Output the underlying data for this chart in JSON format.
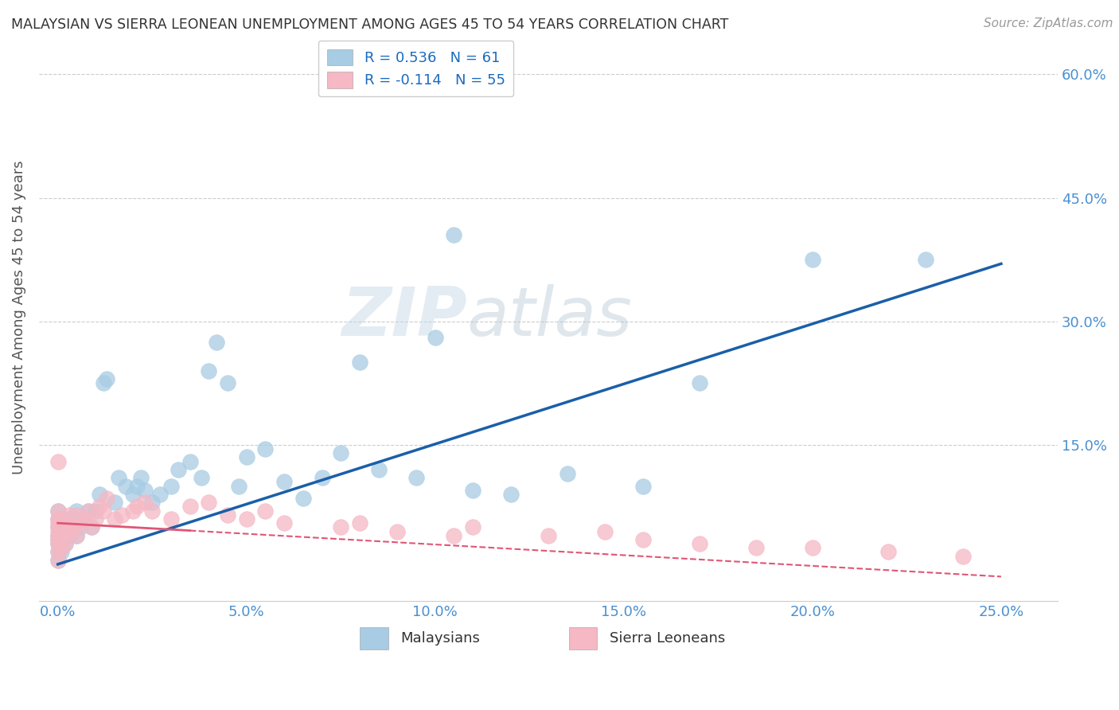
{
  "title": "MALAYSIAN VS SIERRA LEONEAN UNEMPLOYMENT AMONG AGES 45 TO 54 YEARS CORRELATION CHART",
  "source": "Source: ZipAtlas.com",
  "xlabel_ticks": [
    "0.0%",
    "5.0%",
    "10.0%",
    "15.0%",
    "20.0%",
    "25.0%"
  ],
  "xlabel_vals": [
    0.0,
    5.0,
    10.0,
    15.0,
    20.0,
    25.0
  ],
  "ylabel_ticks": [
    "15.0%",
    "30.0%",
    "45.0%",
    "60.0%"
  ],
  "ylabel_vals": [
    15,
    30,
    45,
    60
  ],
  "ylabel_label": "Unemployment Among Ages 45 to 54 years",
  "xlim": [
    -0.5,
    26.5
  ],
  "ylim": [
    -4.0,
    65.0
  ],
  "malaysian_R": 0.536,
  "malaysian_N": 61,
  "sierraleone_R": -0.114,
  "sierraleone_N": 55,
  "blue_color": "#a8cce4",
  "pink_color": "#f5b8c4",
  "blue_line_color": "#1a5fa8",
  "pink_line_color": "#e05575",
  "watermark_zip": "ZIP",
  "watermark_atlas": "atlas",
  "legend_R_color": "#1a6bbf",
  "title_color": "#333333",
  "tick_color": "#4a90d0",
  "malaysian_x": [
    0.0,
    0.0,
    0.0,
    0.0,
    0.0,
    0.0,
    0.0,
    0.0,
    0.1,
    0.1,
    0.1,
    0.2,
    0.2,
    0.3,
    0.3,
    0.4,
    0.5,
    0.5,
    0.6,
    0.7,
    0.8,
    0.9,
    1.0,
    1.1,
    1.2,
    1.3,
    1.5,
    1.6,
    1.8,
    2.0,
    2.1,
    2.2,
    2.3,
    2.5,
    2.7,
    3.0,
    3.2,
    3.5,
    3.8,
    4.0,
    4.2,
    4.5,
    4.8,
    5.0,
    5.5,
    6.0,
    6.5,
    7.0,
    7.5,
    8.0,
    8.5,
    9.5,
    10.0,
    10.5,
    11.0,
    12.0,
    13.5,
    15.5,
    17.0,
    20.0,
    23.0
  ],
  "malaysian_y": [
    1.0,
    2.0,
    3.0,
    3.5,
    4.0,
    5.0,
    6.0,
    7.0,
    2.0,
    4.0,
    6.0,
    3.0,
    5.0,
    4.0,
    6.0,
    5.0,
    4.0,
    7.0,
    5.0,
    6.0,
    7.0,
    5.0,
    7.0,
    9.0,
    22.5,
    23.0,
    8.0,
    11.0,
    10.0,
    9.0,
    10.0,
    11.0,
    9.5,
    8.0,
    9.0,
    10.0,
    12.0,
    13.0,
    11.0,
    24.0,
    27.5,
    22.5,
    10.0,
    13.5,
    14.5,
    10.5,
    8.5,
    11.0,
    14.0,
    25.0,
    12.0,
    11.0,
    28.0,
    40.5,
    9.5,
    9.0,
    11.5,
    10.0,
    22.5,
    37.5,
    37.5
  ],
  "sierraleone_x": [
    0.0,
    0.0,
    0.0,
    0.0,
    0.0,
    0.0,
    0.0,
    0.0,
    0.0,
    0.0,
    0.0,
    0.1,
    0.1,
    0.1,
    0.2,
    0.2,
    0.3,
    0.3,
    0.4,
    0.5,
    0.5,
    0.6,
    0.7,
    0.8,
    0.9,
    1.0,
    1.1,
    1.2,
    1.3,
    1.5,
    1.7,
    2.0,
    2.1,
    2.3,
    2.5,
    3.0,
    3.5,
    4.0,
    4.5,
    5.0,
    5.5,
    6.0,
    7.5,
    8.0,
    9.0,
    10.5,
    11.0,
    13.0,
    14.5,
    15.5,
    17.0,
    18.5,
    20.0,
    22.0,
    24.0
  ],
  "sierraleone_y": [
    1.0,
    2.0,
    3.0,
    3.5,
    4.0,
    4.5,
    5.0,
    5.5,
    6.0,
    7.0,
    13.0,
    2.5,
    4.0,
    6.0,
    3.0,
    5.0,
    4.5,
    6.5,
    5.0,
    4.0,
    6.5,
    5.5,
    6.0,
    7.0,
    5.0,
    6.0,
    7.5,
    7.0,
    8.5,
    6.0,
    6.5,
    7.0,
    7.5,
    8.0,
    7.0,
    6.0,
    7.5,
    8.0,
    6.5,
    6.0,
    7.0,
    5.5,
    5.0,
    5.5,
    4.5,
    4.0,
    5.0,
    4.0,
    4.5,
    3.5,
    3.0,
    2.5,
    2.5,
    2.0,
    1.5
  ],
  "blue_trend_x0": 0.0,
  "blue_trend_y0": 0.5,
  "blue_trend_x1": 25.0,
  "blue_trend_y1": 37.0,
  "pink_trend_x0": 0.0,
  "pink_trend_y0": 5.5,
  "pink_trend_x1": 25.0,
  "pink_trend_y1": -1.0
}
